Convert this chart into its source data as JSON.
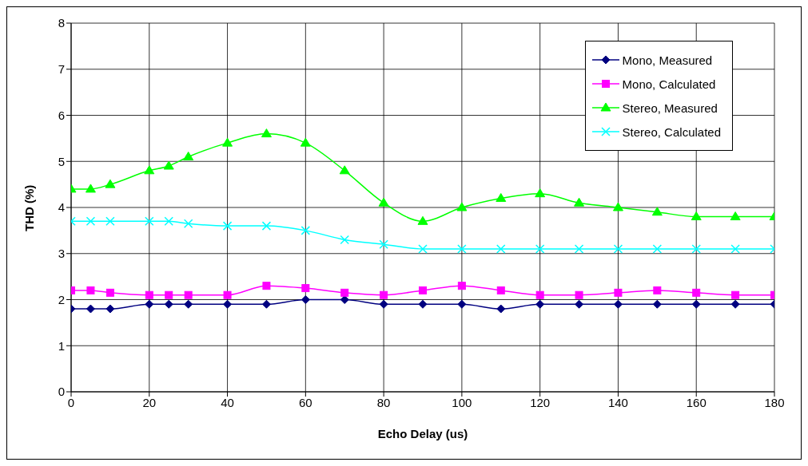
{
  "chart_data": {
    "type": "line",
    "xlabel": "Echo Delay (us)",
    "ylabel": "THD (%)",
    "x": [
      0,
      5,
      10,
      20,
      25,
      30,
      40,
      50,
      60,
      70,
      80,
      90,
      100,
      110,
      120,
      130,
      140,
      150,
      160,
      170,
      180
    ],
    "series": [
      {
        "name": "Mono, Measured",
        "color": "#000080",
        "marker": "diamond",
        "values": [
          1.8,
          1.8,
          1.8,
          1.9,
          1.9,
          1.9,
          1.9,
          1.9,
          2.0,
          2.0,
          1.9,
          1.9,
          1.9,
          1.8,
          1.9,
          1.9,
          1.9,
          1.9,
          1.9,
          1.9,
          1.9
        ]
      },
      {
        "name": "Mono, Calculated",
        "color": "#ff00ff",
        "marker": "square",
        "values": [
          2.2,
          2.2,
          2.15,
          2.1,
          2.1,
          2.1,
          2.1,
          2.3,
          2.25,
          2.15,
          2.1,
          2.2,
          2.3,
          2.2,
          2.1,
          2.1,
          2.15,
          2.2,
          2.15,
          2.1,
          2.1
        ]
      },
      {
        "name": "Stereo, Measured",
        "color": "#00ff00",
        "marker": "triangle",
        "values": [
          4.4,
          4.4,
          4.5,
          4.8,
          4.9,
          5.1,
          5.4,
          5.6,
          5.4,
          4.8,
          4.1,
          3.7,
          4.0,
          4.2,
          4.3,
          4.1,
          4.0,
          3.9,
          3.8,
          3.8,
          3.8
        ]
      },
      {
        "name": "Stereo, Calculated",
        "color": "#00ffff",
        "marker": "cross",
        "values": [
          3.7,
          3.7,
          3.7,
          3.7,
          3.7,
          3.65,
          3.6,
          3.6,
          3.5,
          3.3,
          3.2,
          3.1,
          3.1,
          3.1,
          3.1,
          3.1,
          3.1,
          3.1,
          3.1,
          3.1,
          3.1
        ]
      }
    ],
    "xlim": [
      0,
      180
    ],
    "xticks": [
      0,
      20,
      40,
      60,
      80,
      100,
      120,
      140,
      160,
      180
    ],
    "ylim": [
      0,
      8
    ],
    "yticks": [
      0,
      1,
      2,
      3,
      4,
      5,
      6,
      7,
      8
    ],
    "grid": true,
    "legend": "top right",
    "line_style": "solid"
  }
}
